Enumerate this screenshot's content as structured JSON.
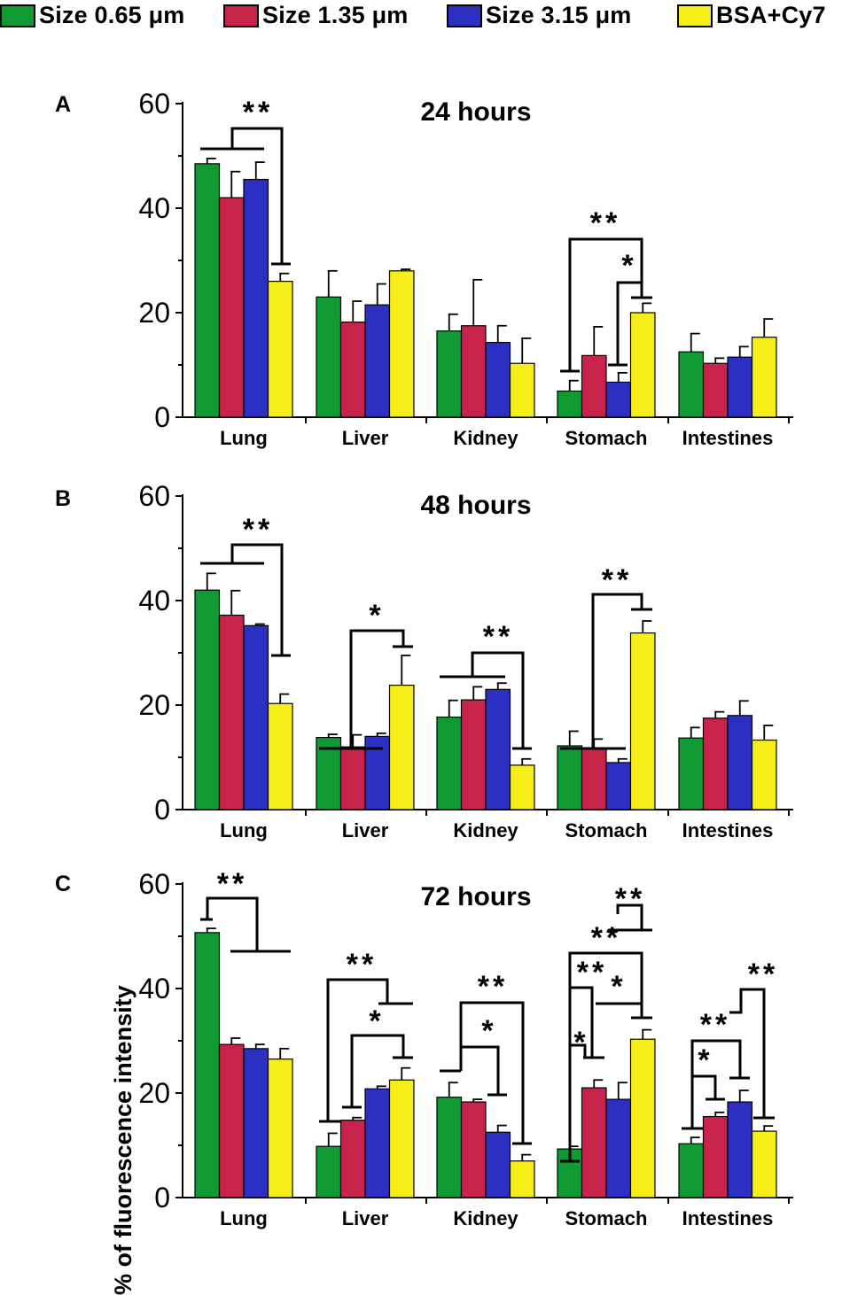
{
  "legend": [
    {
      "label": "Size 0.65 μm",
      "color": "#0f9a33"
    },
    {
      "label": "Size 1.35 μm",
      "color": "#c8234a"
    },
    {
      "label": "Size 3.15 μm",
      "color": "#2b2fc2"
    },
    {
      "label": "BSA+Cy7",
      "color": "#f7ee19"
    }
  ],
  "ylabel": "% of fluorescence intensity",
  "chart_data": [
    {
      "type": "bar",
      "panel": "A",
      "title": "24 hours",
      "categories": [
        "Lung",
        "Liver",
        "Kidney",
        "Stomach",
        "Intestines"
      ],
      "ylim": [
        0,
        60
      ],
      "yticks": [
        0,
        20,
        40,
        60
      ],
      "series": [
        {
          "name": "Size 0.65 μm",
          "values": [
            48.5,
            23.0,
            16.5,
            5.0,
            12.5
          ],
          "errors": [
            1.0,
            5.0,
            3.2,
            2.0,
            3.5
          ]
        },
        {
          "name": "Size 1.35 μm",
          "values": [
            42.0,
            18.2,
            17.5,
            11.8,
            10.3
          ],
          "errors": [
            5.0,
            4.0,
            8.8,
            5.5,
            1.0
          ]
        },
        {
          "name": "Size 3.15 μm",
          "values": [
            45.5,
            21.5,
            14.3,
            6.7,
            11.5
          ],
          "errors": [
            3.3,
            4.0,
            3.2,
            1.8,
            2.0
          ]
        },
        {
          "name": "BSA+Cy7",
          "values": [
            26.0,
            28.0,
            10.3,
            20.0,
            15.3
          ],
          "errors": [
            1.5,
            0.3,
            4.8,
            1.8,
            3.5
          ]
        }
      ],
      "annotations": [
        "**",
        "**",
        "*"
      ]
    },
    {
      "type": "bar",
      "panel": "B",
      "title": "48 hours",
      "categories": [
        "Lung",
        "Liver",
        "Kidney",
        "Stomach",
        "Intestines"
      ],
      "ylim": [
        0,
        60
      ],
      "yticks": [
        0,
        20,
        40,
        60
      ],
      "series": [
        {
          "name": "Size 0.65 μm",
          "values": [
            42.0,
            13.8,
            17.7,
            12.2,
            13.7
          ],
          "errors": [
            3.2,
            0.6,
            3.2,
            2.8,
            2.0
          ]
        },
        {
          "name": "Size 1.35 μm",
          "values": [
            37.2,
            12.0,
            21.0,
            11.7,
            17.5
          ],
          "errors": [
            4.7,
            2.3,
            2.5,
            1.8,
            1.2
          ]
        },
        {
          "name": "Size 3.15 μm",
          "values": [
            35.2,
            14.0,
            23.0,
            9.0,
            18.0
          ],
          "errors": [
            0.3,
            0.6,
            1.2,
            0.7,
            2.8
          ]
        },
        {
          "name": "BSA+Cy7",
          "values": [
            20.3,
            23.8,
            8.5,
            33.8,
            13.3
          ],
          "errors": [
            1.8,
            5.7,
            1.2,
            2.3,
            2.8
          ]
        }
      ],
      "annotations": [
        "**",
        "*",
        "**",
        "**"
      ]
    },
    {
      "type": "bar",
      "panel": "C",
      "title": "72 hours",
      "categories": [
        "Lung",
        "Liver",
        "Kidney",
        "Stomach",
        "Intestines"
      ],
      "ylim": [
        0,
        60
      ],
      "yticks": [
        0,
        20,
        40,
        60
      ],
      "series": [
        {
          "name": "Size 0.65 μm",
          "values": [
            50.7,
            9.8,
            19.2,
            9.3,
            10.3
          ],
          "errors": [
            0.8,
            2.5,
            2.8,
            0.5,
            1.2
          ]
        },
        {
          "name": "Size 1.35 μm",
          "values": [
            29.3,
            14.8,
            18.3,
            21.0,
            15.5
          ],
          "errors": [
            1.2,
            0.5,
            0.5,
            1.5,
            0.8
          ]
        },
        {
          "name": "Size 3.15 μm",
          "values": [
            28.5,
            20.8,
            12.5,
            18.8,
            18.3
          ],
          "errors": [
            0.8,
            0.5,
            1.3,
            3.2,
            2.2
          ]
        },
        {
          "name": "BSA+Cy7",
          "values": [
            26.5,
            22.5,
            7.0,
            30.3,
            12.7
          ],
          "errors": [
            2.0,
            2.3,
            1.2,
            1.8,
            1.0
          ]
        }
      ],
      "annotations": [
        "**",
        "**",
        "*",
        "**",
        "*",
        "**",
        "**",
        "**",
        "*",
        "*",
        "**",
        "*",
        "**"
      ]
    }
  ]
}
